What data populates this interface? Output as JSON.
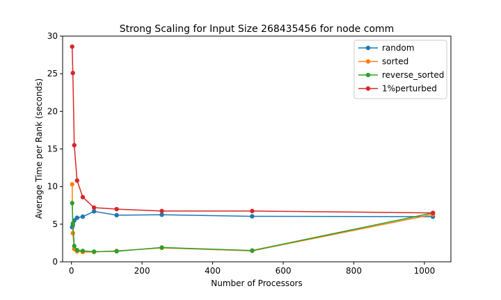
{
  "chart_data": {
    "type": "line",
    "title": "Strong Scaling for Input Size 268435456 for node comm",
    "xlabel": "Number of Processors",
    "ylabel": "Average Time per Rank (seconds)",
    "xlim": [
      -25,
      1075
    ],
    "ylim": [
      0,
      30
    ],
    "xticks": [
      0,
      200,
      400,
      600,
      800,
      1000
    ],
    "yticks": [
      0,
      5,
      10,
      15,
      20,
      25,
      30
    ],
    "grid": false,
    "legend_position": "top-right",
    "series": [
      {
        "name": "random",
        "color": "#1f77b4",
        "x": [
          2,
          4,
          8,
          16,
          32,
          64,
          128,
          256,
          512,
          1024
        ],
        "y": [
          4.6,
          4.9,
          5.5,
          5.85,
          6.0,
          6.7,
          6.2,
          6.25,
          6.05,
          6.0
        ]
      },
      {
        "name": "sorted",
        "color": "#ff7f0e",
        "x": [
          2,
          4,
          8,
          16,
          32,
          64,
          128,
          256,
          512,
          1024
        ],
        "y": [
          10.3,
          3.8,
          1.7,
          1.4,
          1.3,
          1.3,
          1.45,
          1.85,
          1.45,
          6.3
        ]
      },
      {
        "name": "reverse_sorted",
        "color": "#2ca02c",
        "x": [
          2,
          4,
          8,
          16,
          32,
          64,
          128,
          256,
          512,
          1024
        ],
        "y": [
          7.8,
          5.1,
          2.1,
          1.55,
          1.45,
          1.35,
          1.4,
          1.9,
          1.5,
          6.5
        ]
      },
      {
        "name": "1%perturbed",
        "color": "#d62728",
        "x": [
          2,
          4,
          8,
          16,
          32,
          64,
          128,
          256,
          512,
          1024
        ],
        "y": [
          28.6,
          25.1,
          15.5,
          10.8,
          8.6,
          7.2,
          7.0,
          6.75,
          6.75,
          6.5
        ]
      }
    ]
  }
}
